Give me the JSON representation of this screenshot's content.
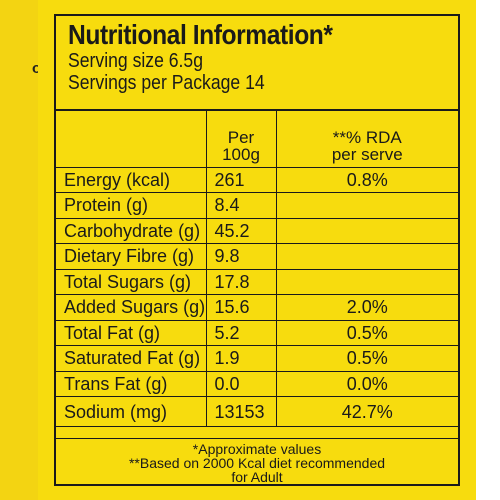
{
  "side_text": "o)",
  "header": {
    "title": "Nutritional Information*",
    "serving_size": "Serving size 6.5g",
    "servings_per_package": "Servings per Package 14"
  },
  "columns": {
    "per_line1": "Per",
    "per_line2": "100g",
    "rda_line1": "**% RDA",
    "rda_line2": "per serve"
  },
  "rows": [
    {
      "name": "Energy (kcal)",
      "per100g": "261",
      "rda": "0.8%"
    },
    {
      "name": "Protein (g)",
      "per100g": "8.4",
      "rda": ""
    },
    {
      "name": "Carbohydrate (g)",
      "per100g": "45.2",
      "rda": ""
    },
    {
      "name": "Dietary Fibre (g)",
      "per100g": "9.8",
      "rda": ""
    },
    {
      "name": "Total Sugars (g)",
      "per100g": "17.8",
      "rda": ""
    },
    {
      "name": "Added Sugars (g)",
      "per100g": "15.6",
      "rda": "2.0%"
    },
    {
      "name": "Total Fat (g)",
      "per100g": "5.2",
      "rda": "0.5%"
    },
    {
      "name": "Saturated Fat (g)",
      "per100g": "1.9",
      "rda": "0.5%"
    },
    {
      "name": "Trans Fat (g)",
      "per100g": "0.0",
      "rda": "0.0%"
    },
    {
      "name": "Sodium (mg)",
      "per100g": "13153",
      "rda": "42.7%"
    }
  ],
  "footer": {
    "note1": "*Approximate values",
    "note2": "**Based on 2000 Kcal diet recommended",
    "note3": "for Adult"
  },
  "colors": {
    "background": "#f7dc0e",
    "ink": "#1a1a1a"
  }
}
